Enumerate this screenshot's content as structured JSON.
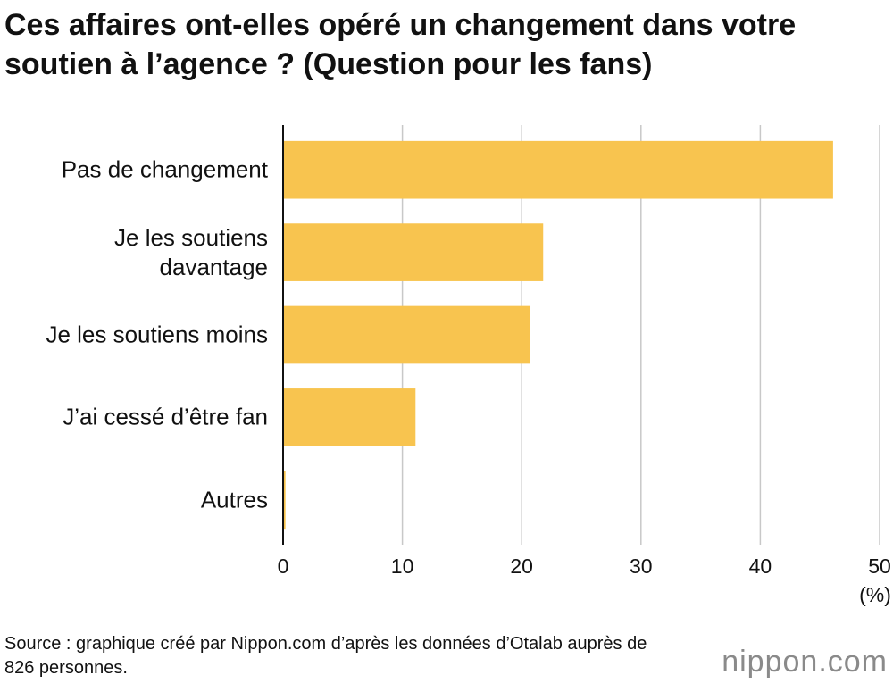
{
  "chart_data": {
    "type": "bar",
    "orientation": "horizontal",
    "title": "Ces affaires ont-elles opéré un changement dans votre soutien à l’agence ? (Question pour les fans)",
    "categories": [
      "Pas de changement",
      "Je les soutiens\ndavantage",
      "Je les soutiens moins",
      "J’ai cessé d’être fan",
      "Autres"
    ],
    "values": [
      46.1,
      21.8,
      20.7,
      11.1,
      0.2
    ],
    "color": "#f8c44f",
    "xlim": [
      0,
      50
    ],
    "xticks": [
      0,
      10,
      20,
      30,
      40,
      50
    ],
    "x_unit": "(%)",
    "grid": true,
    "source": "Source : graphique créé par Nippon.com d’après les données d’Otalab auprès de 826 personnes.",
    "logo": "nippon.com"
  }
}
